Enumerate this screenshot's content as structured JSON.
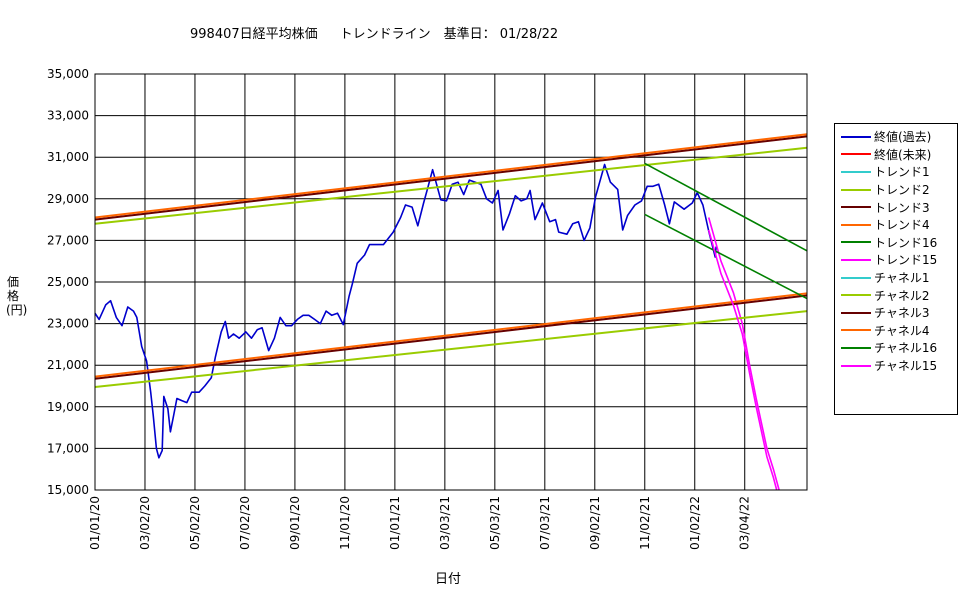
{
  "title": {
    "prefix": "998407日経平均株価",
    "suffix": "トレンドライン　基準日： 01/28/22"
  },
  "chart_data": {
    "type": "line",
    "xlabel": "日付",
    "ylabel": "価格(円)",
    "ylim": [
      15000,
      35000
    ],
    "yticks": [
      15000,
      17000,
      19000,
      21000,
      23000,
      25000,
      27000,
      29000,
      31000,
      33000,
      35000
    ],
    "ytick_labels": [
      "15,000",
      "17,000",
      "19,000",
      "21,000",
      "23,000",
      "25,000",
      "27,000",
      "29,000",
      "31,000",
      "33,000",
      "35,000"
    ],
    "xticks": [
      "01/01/20",
      "03/02/20",
      "05/02/20",
      "07/02/20",
      "09/01/20",
      "11/01/20",
      "01/01/21",
      "03/03/21",
      "05/03/21",
      "07/03/21",
      "09/02/21",
      "11/02/21",
      "01/02/22",
      "03/04/22"
    ],
    "x_range": [
      "2020-01-01",
      "2022-05-19"
    ],
    "grid": true,
    "legend_position": "right",
    "series": [
      {
        "name": "終値(過去)",
        "color": "#0000cc",
        "width": 1.6,
        "points": [
          [
            "2020-01-01",
            23500
          ],
          [
            "2020-01-06",
            23200
          ],
          [
            "2020-01-14",
            23900
          ],
          [
            "2020-01-20",
            24100
          ],
          [
            "2020-01-27",
            23300
          ],
          [
            "2020-02-03",
            22900
          ],
          [
            "2020-02-10",
            23800
          ],
          [
            "2020-02-17",
            23600
          ],
          [
            "2020-02-21",
            23300
          ],
          [
            "2020-02-27",
            21900
          ],
          [
            "2020-03-04",
            21200
          ],
          [
            "2020-03-09",
            19700
          ],
          [
            "2020-03-12",
            18600
          ],
          [
            "2020-03-16",
            17000
          ],
          [
            "2020-03-19",
            16550
          ],
          [
            "2020-03-23",
            16900
          ],
          [
            "2020-03-25",
            19500
          ],
          [
            "2020-03-30",
            18900
          ],
          [
            "2020-04-02",
            17800
          ],
          [
            "2020-04-06",
            18600
          ],
          [
            "2020-04-10",
            19400
          ],
          [
            "2020-04-16",
            19300
          ],
          [
            "2020-04-22",
            19200
          ],
          [
            "2020-04-28",
            19700
          ],
          [
            "2020-05-07",
            19700
          ],
          [
            "2020-05-14",
            20000
          ],
          [
            "2020-05-22",
            20400
          ],
          [
            "2020-05-27",
            21400
          ],
          [
            "2020-06-03",
            22600
          ],
          [
            "2020-06-08",
            23100
          ],
          [
            "2020-06-12",
            22300
          ],
          [
            "2020-06-18",
            22500
          ],
          [
            "2020-06-25",
            22300
          ],
          [
            "2020-07-03",
            22600
          ],
          [
            "2020-07-10",
            22300
          ],
          [
            "2020-07-17",
            22700
          ],
          [
            "2020-07-23",
            22800
          ],
          [
            "2020-07-31",
            21700
          ],
          [
            "2020-08-07",
            22300
          ],
          [
            "2020-08-14",
            23300
          ],
          [
            "2020-08-21",
            22900
          ],
          [
            "2020-08-28",
            22900
          ],
          [
            "2020-09-04",
            23200
          ],
          [
            "2020-09-11",
            23400
          ],
          [
            "2020-09-18",
            23400
          ],
          [
            "2020-09-25",
            23200
          ],
          [
            "2020-10-02",
            23000
          ],
          [
            "2020-10-09",
            23600
          ],
          [
            "2020-10-16",
            23400
          ],
          [
            "2020-10-23",
            23500
          ],
          [
            "2020-10-30",
            22950
          ],
          [
            "2020-11-06",
            24300
          ],
          [
            "2020-11-10",
            24900
          ],
          [
            "2020-11-16",
            25900
          ],
          [
            "2020-11-25",
            26300
          ],
          [
            "2020-12-01",
            26800
          ],
          [
            "2020-12-10",
            26800
          ],
          [
            "2020-12-18",
            26800
          ],
          [
            "2020-12-30",
            27400
          ],
          [
            "2021-01-08",
            28100
          ],
          [
            "2021-01-14",
            28700
          ],
          [
            "2021-01-22",
            28600
          ],
          [
            "2021-01-29",
            27700
          ],
          [
            "2021-02-05",
            28800
          ],
          [
            "2021-02-10",
            29500
          ],
          [
            "2021-02-16",
            30400
          ],
          [
            "2021-02-26",
            28950
          ],
          [
            "2021-03-05",
            28900
          ],
          [
            "2021-03-12",
            29700
          ],
          [
            "2021-03-19",
            29800
          ],
          [
            "2021-03-26",
            29200
          ],
          [
            "2021-04-02",
            29900
          ],
          [
            "2021-04-09",
            29800
          ],
          [
            "2021-04-16",
            29700
          ],
          [
            "2021-04-23",
            29000
          ],
          [
            "2021-04-30",
            28800
          ],
          [
            "2021-05-07",
            29400
          ],
          [
            "2021-05-13",
            27500
          ],
          [
            "2021-05-21",
            28300
          ],
          [
            "2021-05-28",
            29150
          ],
          [
            "2021-06-04",
            28900
          ],
          [
            "2021-06-11",
            29000
          ],
          [
            "2021-06-15",
            29400
          ],
          [
            "2021-06-21",
            28000
          ],
          [
            "2021-06-30",
            28800
          ],
          [
            "2021-07-09",
            27900
          ],
          [
            "2021-07-16",
            28000
          ],
          [
            "2021-07-20",
            27400
          ],
          [
            "2021-07-30",
            27300
          ],
          [
            "2021-08-06",
            27800
          ],
          [
            "2021-08-13",
            27900
          ],
          [
            "2021-08-20",
            27000
          ],
          [
            "2021-08-27",
            27600
          ],
          [
            "2021-09-03",
            29100
          ],
          [
            "2021-09-14",
            30650
          ],
          [
            "2021-09-21",
            29800
          ],
          [
            "2021-09-30",
            29450
          ],
          [
            "2021-10-06",
            27500
          ],
          [
            "2021-10-12",
            28200
          ],
          [
            "2021-10-21",
            28700
          ],
          [
            "2021-10-29",
            28900
          ],
          [
            "2021-11-05",
            29600
          ],
          [
            "2021-11-12",
            29600
          ],
          [
            "2021-11-19",
            29700
          ],
          [
            "2021-11-26",
            28750
          ],
          [
            "2021-12-02",
            27800
          ],
          [
            "2021-12-08",
            28850
          ],
          [
            "2021-12-20",
            28500
          ],
          [
            "2021-12-30",
            28800
          ],
          [
            "2022-01-05",
            29300
          ],
          [
            "2022-01-12",
            28700
          ],
          [
            "2022-01-19",
            27450
          ],
          [
            "2022-01-27",
            26200
          ],
          [
            "2022-01-28",
            26700
          ]
        ]
      },
      {
        "name": "終値(未来)",
        "color": "#ff0000",
        "width": 1.2,
        "points": []
      },
      {
        "name": "トレンド1",
        "color": "#33cccc",
        "width": 1.2,
        "points": []
      },
      {
        "name": "トレンド2",
        "color": "#99cc00",
        "width": 2,
        "points": [
          [
            "2020-01-01",
            27800
          ],
          [
            "2022-05-19",
            31450
          ]
        ]
      },
      {
        "name": "トレンド3",
        "color": "#660000",
        "width": 2,
        "points": [
          [
            "2020-01-01",
            28000
          ],
          [
            "2022-05-19",
            32000
          ]
        ]
      },
      {
        "name": "トレンド4",
        "color": "#ff6600",
        "width": 2,
        "points": [
          [
            "2020-01-01",
            28100
          ],
          [
            "2022-05-19",
            32100
          ]
        ]
      },
      {
        "name": "トレンド16",
        "color": "#008000",
        "width": 1.6,
        "points": [
          [
            "2021-11-02",
            30700
          ],
          [
            "2022-05-19",
            26500
          ]
        ]
      },
      {
        "name": "トレンド15",
        "color": "#ff00ff",
        "width": 1.6,
        "points": [
          [
            "2022-01-19",
            28100
          ],
          [
            "2022-02-03",
            26000
          ],
          [
            "2022-02-18",
            24500
          ],
          [
            "2022-03-01",
            23000
          ],
          [
            "2022-03-10",
            21000
          ],
          [
            "2022-03-18",
            19400
          ],
          [
            "2022-03-24",
            18300
          ],
          [
            "2022-03-31",
            17000
          ],
          [
            "2022-04-08",
            16000
          ],
          [
            "2022-04-15",
            15000
          ]
        ]
      },
      {
        "name": "チャネル1",
        "color": "#33cccc",
        "width": 1.2,
        "points": []
      },
      {
        "name": "チャネル2",
        "color": "#99cc00",
        "width": 2,
        "points": [
          [
            "2020-01-01",
            19950
          ],
          [
            "2022-05-19",
            23600
          ]
        ]
      },
      {
        "name": "チャネル3",
        "color": "#660000",
        "width": 2,
        "points": [
          [
            "2020-01-01",
            20350
          ],
          [
            "2022-05-19",
            24350
          ]
        ]
      },
      {
        "name": "チャネル4",
        "color": "#ff6600",
        "width": 2,
        "points": [
          [
            "2020-01-01",
            20450
          ],
          [
            "2022-05-19",
            24450
          ]
        ]
      },
      {
        "name": "チャネル16",
        "color": "#008000",
        "width": 1.6,
        "points": [
          [
            "2021-11-02",
            28250
          ],
          [
            "2022-05-19",
            24200
          ]
        ]
      },
      {
        "name": "チャネル15",
        "color": "#ff00ff",
        "width": 1.6,
        "points": [
          [
            "2022-01-19",
            27500
          ],
          [
            "2022-02-03",
            25400
          ],
          [
            "2022-02-18",
            23900
          ],
          [
            "2022-03-01",
            22500
          ],
          [
            "2022-03-10",
            20600
          ],
          [
            "2022-03-18",
            19000
          ],
          [
            "2022-03-24",
            17900
          ],
          [
            "2022-03-31",
            16600
          ],
          [
            "2022-04-08",
            15600
          ],
          [
            "2022-04-12",
            15000
          ]
        ]
      }
    ]
  }
}
